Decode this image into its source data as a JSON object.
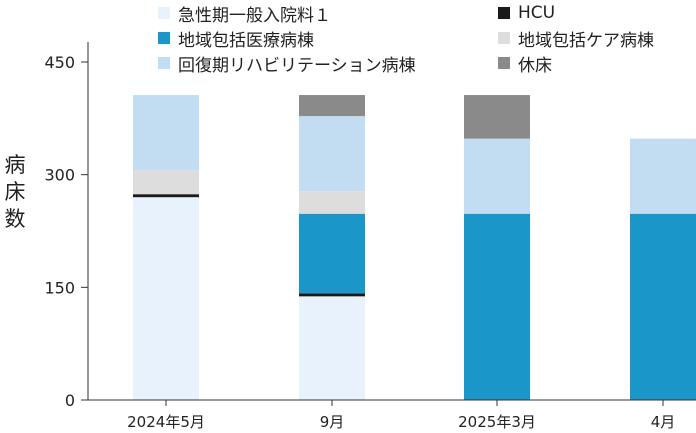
{
  "chart_data": {
    "type": "bar",
    "stacked": true,
    "categories": [
      "2024年5月",
      "9月",
      "2025年3月",
      "4月"
    ],
    "ylabel": "病床数",
    "ylim": [
      0,
      450
    ],
    "yticks": [
      0,
      150,
      300,
      450
    ],
    "grid": false,
    "legend_position": "top",
    "series": [
      {
        "name": "急性期一般入院料１",
        "color": "#e8f2fc",
        "values": [
          270,
          138,
          0,
          0
        ]
      },
      {
        "name": "HCU",
        "color": "#1a1a1a",
        "values": [
          4,
          4,
          0,
          0
        ]
      },
      {
        "name": "地域包括医療病棟",
        "color": "#1a96c8",
        "values": [
          0,
          106,
          248,
          248
        ]
      },
      {
        "name": "地域包括ケア病棟",
        "color": "#dddddd",
        "values": [
          32,
          30,
          0,
          0
        ]
      },
      {
        "name": "回復期リハビリテーション病棟",
        "color": "#c2dcf2",
        "values": [
          100,
          100,
          100,
          100
        ]
      },
      {
        "name": "休床",
        "color": "#8a8a8a",
        "values": [
          0,
          28,
          58,
          0
        ]
      }
    ]
  }
}
